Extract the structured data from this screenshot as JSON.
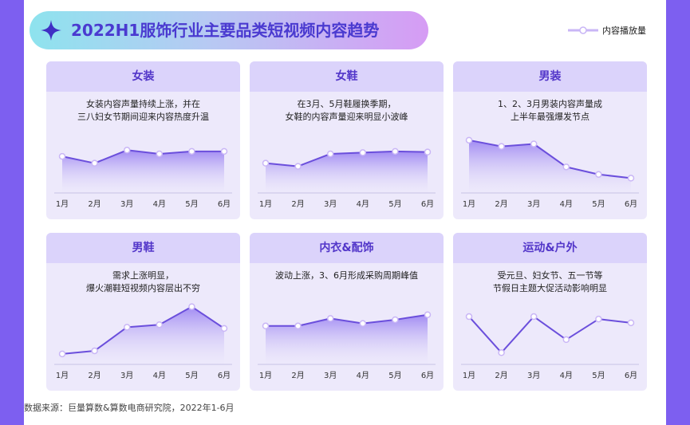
{
  "title": "2022H1服饰行业主要品类短视频内容趋势",
  "legend_label": "内容播放量",
  "source": "数据来源：巨量算数&算数电商研究院，2022年1-6月",
  "colors": {
    "line": "#6b4fdc",
    "fill_top": "#9d86f2",
    "marker_fill": "#ffffff",
    "marker_stroke": "#c9b6f6",
    "axis": "#c8c2e4"
  },
  "chart_data": [
    {
      "type": "area",
      "title": "女装",
      "subtitle_lines": [
        "女装内容声量持续上涨，并在",
        "三八妇女节期间迎来内容热度升温"
      ],
      "categories": [
        "1月",
        "2月",
        "3月",
        "4月",
        "5月",
        "6月"
      ],
      "values": [
        55,
        44,
        65,
        59,
        63,
        63
      ],
      "ylim": [
        0,
        100
      ],
      "grid": false
    },
    {
      "type": "area",
      "title": "女鞋",
      "subtitle_lines": [
        "在3月、5月鞋履换季期，",
        "女鞋的内容声量迎来明显小波峰"
      ],
      "categories": [
        "1月",
        "2月",
        "3月",
        "4月",
        "5月",
        "6月"
      ],
      "values": [
        44,
        39,
        59,
        61,
        63,
        62
      ],
      "ylim": [
        0,
        100
      ],
      "grid": false
    },
    {
      "type": "area",
      "title": "男装",
      "subtitle_lines": [
        "1、2、3月男装内容声量成",
        "上半年最强爆发节点"
      ],
      "categories": [
        "1月",
        "2月",
        "3月",
        "4月",
        "5月",
        "6月"
      ],
      "values": [
        81,
        71,
        75,
        38,
        26,
        20
      ],
      "ylim": [
        0,
        100
      ],
      "grid": false
    },
    {
      "type": "area",
      "title": "男鞋",
      "subtitle_lines": [
        "需求上涨明显，",
        "爆火潮鞋短视频内容层出不穷"
      ],
      "categories": [
        "1月",
        "2月",
        "3月",
        "4月",
        "5月",
        "6月"
      ],
      "values": [
        13,
        18,
        56,
        60,
        89,
        54
      ],
      "ylim": [
        0,
        100
      ],
      "grid": false
    },
    {
      "type": "area",
      "title": "内衣&配饰",
      "subtitle_lines": [
        "波动上涨，3、6月形成采购周期峰值"
      ],
      "categories": [
        "1月",
        "2月",
        "3月",
        "4月",
        "5月",
        "6月"
      ],
      "values": [
        58,
        58,
        70,
        62,
        68,
        76
      ],
      "ylim": [
        0,
        100
      ],
      "grid": false
    },
    {
      "type": "line",
      "title": "运动&户外",
      "subtitle_lines": [
        "受元旦、妇女节、五一节等",
        "节假日主题大促活动影响明显"
      ],
      "categories": [
        "1月",
        "2月",
        "3月",
        "4月",
        "5月",
        "6月"
      ],
      "values": [
        73,
        15,
        73,
        36,
        69,
        63
      ],
      "ylim": [
        0,
        100
      ],
      "grid": false
    }
  ]
}
